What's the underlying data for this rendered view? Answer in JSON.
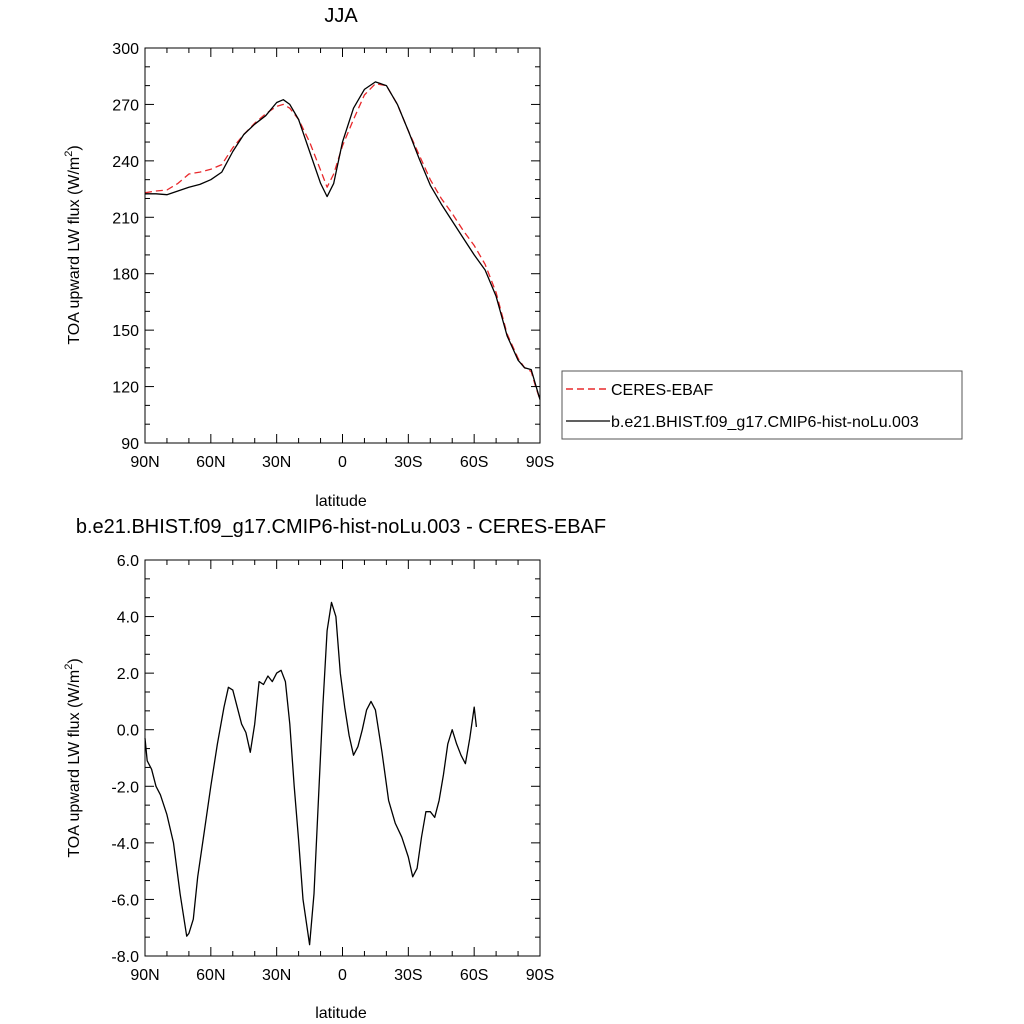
{
  "chart_data": [
    {
      "type": "line",
      "title": "JJA",
      "xlabel": "latitude",
      "ylabel": "TOA upward LW flux (W/m²)",
      "ylabel_main": "TOA upward LW flux (W/m",
      "ylabel_sup": "2",
      "ylabel_end": ")",
      "xlim": [
        90,
        -90
      ],
      "ylim": [
        90,
        300
      ],
      "xticks": [
        {
          "value": 90,
          "label": "90N"
        },
        {
          "value": 60,
          "label": "60N"
        },
        {
          "value": 30,
          "label": "30N"
        },
        {
          "value": 0,
          "label": "0"
        },
        {
          "value": -30,
          "label": "30S"
        },
        {
          "value": -60,
          "label": "60S"
        },
        {
          "value": -90,
          "label": "90S"
        }
      ],
      "yticks": [
        {
          "value": 90,
          "label": "90"
        },
        {
          "value": 120,
          "label": "120"
        },
        {
          "value": 150,
          "label": "150"
        },
        {
          "value": 180,
          "label": "180"
        },
        {
          "value": 210,
          "label": "210"
        },
        {
          "value": 240,
          "label": "240"
        },
        {
          "value": 270,
          "label": "270"
        },
        {
          "value": 300,
          "label": "300"
        }
      ],
      "legend": {
        "position": "right",
        "entries": [
          {
            "name": "CERES-EBAF",
            "color": "#e8282b",
            "dash": true
          },
          {
            "name": "b.e21.BHIST.f09_g17.CMIP6-hist-noLu.003",
            "color": "#000000",
            "dash": false
          }
        ]
      },
      "series": [
        {
          "name": "CERES-EBAF",
          "color": "#e8282b",
          "dash": true,
          "points": [
            [
              90,
              223
            ],
            [
              85,
              224
            ],
            [
              80,
              224.5
            ],
            [
              75,
              228
            ],
            [
              70,
              233
            ],
            [
              65,
              234
            ],
            [
              60,
              235.5
            ],
            [
              55,
              238
            ],
            [
              50,
              247
            ],
            [
              45,
              254
            ],
            [
              40,
              260
            ],
            [
              35,
              265
            ],
            [
              30,
              269
            ],
            [
              27,
              270
            ],
            [
              24,
              268
            ],
            [
              20,
              262
            ],
            [
              15,
              250
            ],
            [
              10,
              235
            ],
            [
              7,
              226
            ],
            [
              4,
              233
            ],
            [
              0,
              248
            ],
            [
              -5,
              262
            ],
            [
              -10,
              275
            ],
            [
              -15,
              281
            ],
            [
              -20,
              280
            ],
            [
              -25,
              270
            ],
            [
              -30,
              256
            ],
            [
              -35,
              243
            ],
            [
              -40,
              230
            ],
            [
              -45,
              220
            ],
            [
              -50,
              212
            ],
            [
              -55,
              203
            ],
            [
              -60,
              195
            ],
            [
              -65,
              185
            ],
            [
              -70,
              170
            ],
            [
              -75,
              148
            ],
            [
              -80,
              135
            ],
            [
              -83,
              130
            ],
            [
              -86,
              128
            ],
            [
              -88,
              120
            ],
            [
              -90,
              113
            ]
          ]
        },
        {
          "name": "b.e21.BHIST.f09_g17.CMIP6-hist-noLu.003",
          "color": "#000000",
          "dash": false,
          "points": [
            [
              90,
              222.5
            ],
            [
              85,
              222.5
            ],
            [
              80,
              222
            ],
            [
              75,
              224
            ],
            [
              70,
              226
            ],
            [
              65,
              227.5
            ],
            [
              60,
              230
            ],
            [
              55,
              234
            ],
            [
              50,
              245
            ],
            [
              45,
              254
            ],
            [
              40,
              259.5
            ],
            [
              35,
              264
            ],
            [
              30,
              271
            ],
            [
              27,
              272.5
            ],
            [
              24,
              270
            ],
            [
              20,
              262
            ],
            [
              15,
              245
            ],
            [
              10,
              228
            ],
            [
              7,
              221
            ],
            [
              4,
              228
            ],
            [
              0,
              250
            ],
            [
              -5,
              268
            ],
            [
              -10,
              278
            ],
            [
              -15,
              282
            ],
            [
              -20,
              280
            ],
            [
              -25,
              270
            ],
            [
              -30,
              256
            ],
            [
              -35,
              241
            ],
            [
              -40,
              227
            ],
            [
              -45,
              217
            ],
            [
              -50,
              208
            ],
            [
              -55,
              199
            ],
            [
              -60,
              190
            ],
            [
              -65,
              182
            ],
            [
              -70,
              168
            ],
            [
              -75,
              147
            ],
            [
              -80,
              134
            ],
            [
              -83,
              130
            ],
            [
              -86,
              129
            ],
            [
              -88,
              121
            ],
            [
              -90,
              113
            ]
          ]
        }
      ]
    },
    {
      "type": "line",
      "title": "b.e21.BHIST.f09_g17.CMIP6-hist-noLu.003 - CERES-EBAF",
      "xlabel": "latitude",
      "ylabel": "TOA upward LW flux (W/m²)",
      "ylabel_main": "TOA upward LW flux (W/m",
      "ylabel_sup": "2",
      "ylabel_end": ")",
      "xlim": [
        90,
        -90
      ],
      "ylim": [
        -8,
        6
      ],
      "xticks": [
        {
          "value": 90,
          "label": "90N"
        },
        {
          "value": 60,
          "label": "60N"
        },
        {
          "value": 30,
          "label": "30N"
        },
        {
          "value": 0,
          "label": "0"
        },
        {
          "value": -30,
          "label": "30S"
        },
        {
          "value": -60,
          "label": "60S"
        },
        {
          "value": -90,
          "label": "90S"
        }
      ],
      "yticks": [
        {
          "value": -8,
          "label": "-8.0"
        },
        {
          "value": -6,
          "label": "-6.0"
        },
        {
          "value": -4,
          "label": "-4.0"
        },
        {
          "value": -2,
          "label": "-2.0"
        },
        {
          "value": 0,
          "label": "0.0"
        },
        {
          "value": 2,
          "label": "2.0"
        },
        {
          "value": 4,
          "label": "4.0"
        },
        {
          "value": 6,
          "label": "6.0"
        }
      ],
      "series": [
        {
          "name": "",
          "color": "#000000",
          "dash": false,
          "points": [
            [
              90,
              -0.3
            ],
            [
              89,
              -1.1
            ],
            [
              87,
              -1.4
            ],
            [
              85,
              -2.0
            ],
            [
              83,
              -2.3
            ],
            [
              80,
              -3.0
            ],
            [
              77,
              -4.0
            ],
            [
              74,
              -5.8
            ],
            [
              71,
              -7.3
            ],
            [
              70,
              -7.2
            ],
            [
              68,
              -6.7
            ],
            [
              66,
              -5.2
            ],
            [
              63,
              -3.6
            ],
            [
              60,
              -2.0
            ],
            [
              57,
              -0.5
            ],
            [
              54,
              0.8
            ],
            [
              52,
              1.5
            ],
            [
              50,
              1.4
            ],
            [
              48,
              0.8
            ],
            [
              46,
              0.2
            ],
            [
              44,
              -0.1
            ],
            [
              42,
              -0.8
            ],
            [
              40,
              0.2
            ],
            [
              38,
              1.7
            ],
            [
              36,
              1.6
            ],
            [
              34,
              1.9
            ],
            [
              32,
              1.7
            ],
            [
              30,
              2.0
            ],
            [
              28,
              2.1
            ],
            [
              26,
              1.7
            ],
            [
              24,
              0.2
            ],
            [
              22,
              -2.0
            ],
            [
              20,
              -3.9
            ],
            [
              18,
              -6.0
            ],
            [
              15,
              -7.6
            ],
            [
              13,
              -5.8
            ],
            [
              11,
              -2.5
            ],
            [
              9,
              0.8
            ],
            [
              7,
              3.5
            ],
            [
              5,
              4.5
            ],
            [
              3,
              4.0
            ],
            [
              1,
              2.0
            ],
            [
              -1,
              0.8
            ],
            [
              -3,
              -0.2
            ],
            [
              -5,
              -0.9
            ],
            [
              -7,
              -0.6
            ],
            [
              -9,
              0.0
            ],
            [
              -11,
              0.7
            ],
            [
              -13,
              1.0
            ],
            [
              -15,
              0.7
            ],
            [
              -18,
              -0.8
            ],
            [
              -21,
              -2.5
            ],
            [
              -24,
              -3.3
            ],
            [
              -27,
              -3.8
            ],
            [
              -30,
              -4.5
            ],
            [
              -32,
              -5.2
            ],
            [
              -34,
              -4.9
            ],
            [
              -36,
              -3.8
            ],
            [
              -38,
              -2.9
            ],
            [
              -40,
              -2.9
            ],
            [
              -42,
              -3.1
            ],
            [
              -44,
              -2.5
            ],
            [
              -46,
              -1.6
            ],
            [
              -48,
              -0.5
            ],
            [
              -50,
              0.0
            ],
            [
              -52,
              -0.5
            ],
            [
              -54,
              -0.9
            ],
            [
              -56,
              -1.2
            ],
            [
              -58,
              -0.3
            ],
            [
              -60,
              0.8
            ],
            [
              -61,
              0.1
            ]
          ]
        }
      ]
    }
  ]
}
